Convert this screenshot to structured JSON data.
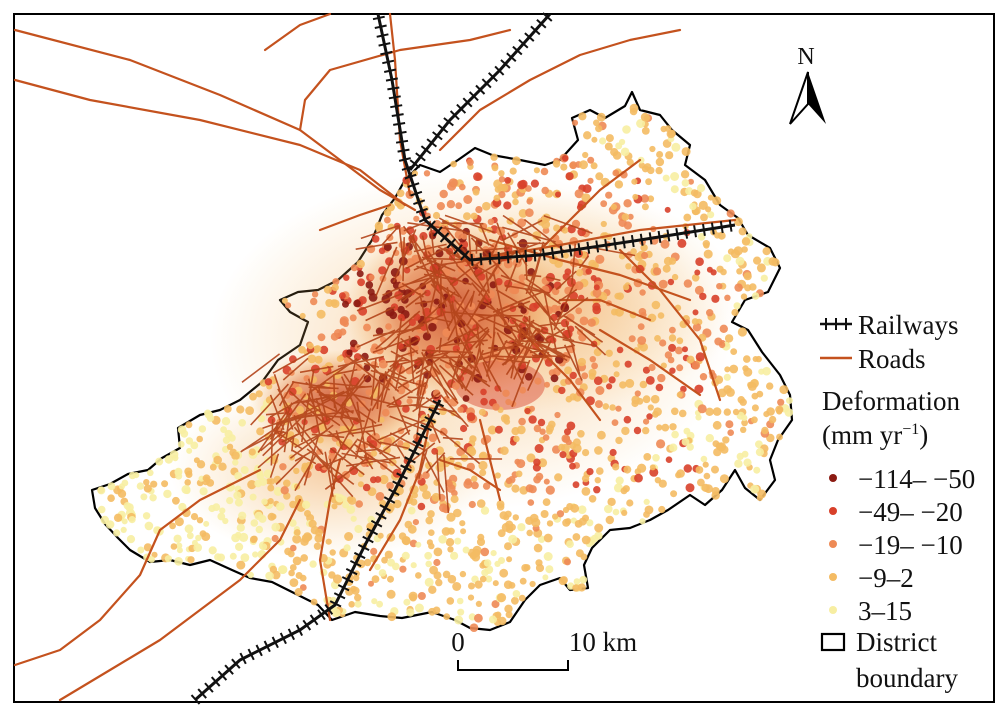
{
  "north_arrow": {
    "label": "N"
  },
  "legend": {
    "railways": "Railways",
    "roads": "Roads",
    "deformation_title": "Deformation",
    "deformation_unit": "(mm yr",
    "deformation_unit_sup": "−1",
    "deformation_unit_close": ")",
    "classes": [
      {
        "label": "−114– −50",
        "color": "#8b1a12"
      },
      {
        "label": "−49– −20",
        "color": "#d8402a"
      },
      {
        "label": "−19– −10",
        "color": "#ee8a55"
      },
      {
        "label": "−9–2",
        "color": "#f4bb63"
      },
      {
        "label": "3–15",
        "color": "#f7eea2"
      }
    ],
    "district_line1": "District",
    "district_line2": "boundary"
  },
  "scale_bar": {
    "start_label": "0",
    "end_label": "10 km"
  },
  "colors": {
    "road": "#c4521e",
    "railway": "#111111",
    "boundary": "#000000"
  }
}
